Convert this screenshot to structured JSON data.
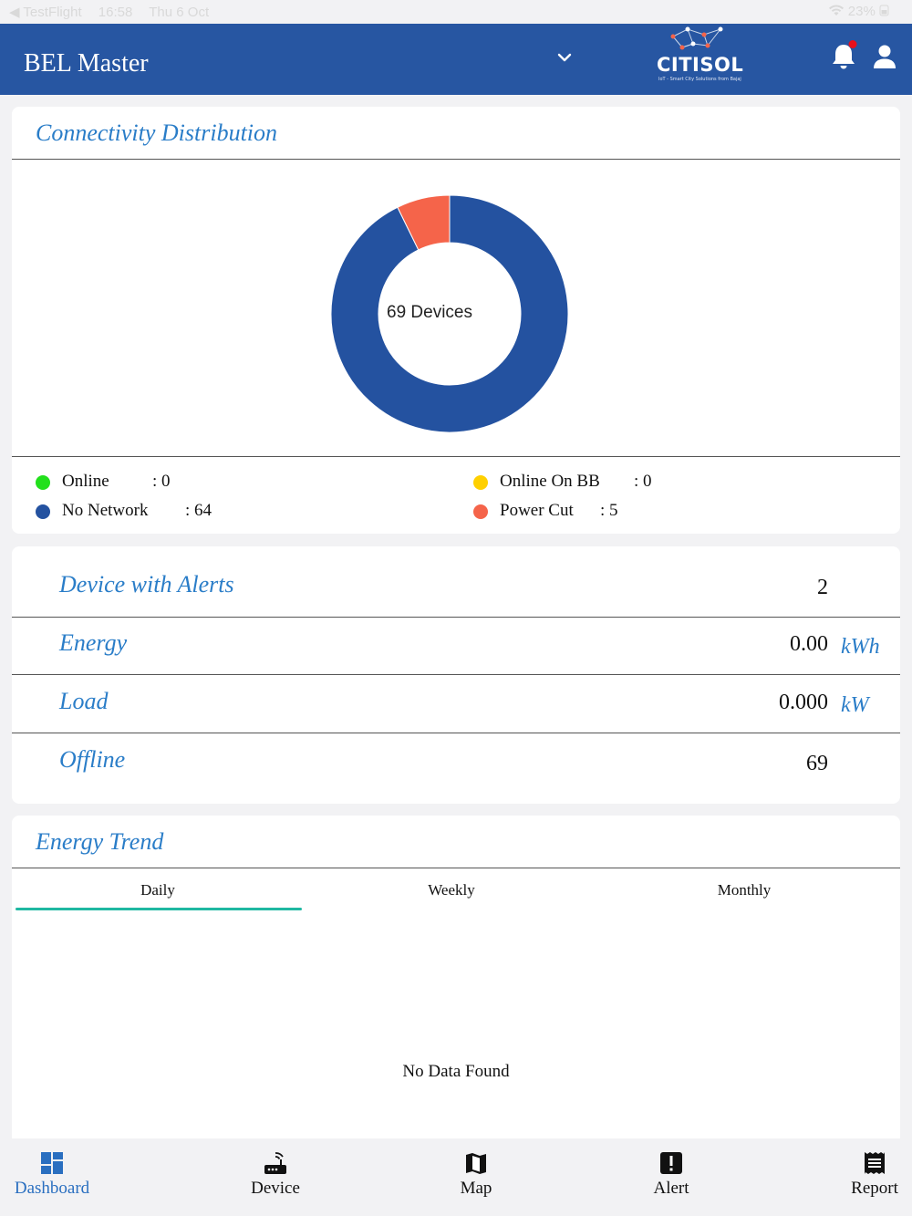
{
  "status_bar": {
    "back_app": "◀ TestFlight",
    "time": "16:58",
    "date": "Thu 6 Oct",
    "battery": "23%"
  },
  "header": {
    "title": "BEL Master",
    "logo_text": "CITISOL",
    "logo_tagline": "IoT - Smart City Solutions from Bajaj"
  },
  "connectivity": {
    "title": "Connectivity Distribution",
    "center_label": "69 Devices",
    "legend": [
      {
        "label": "Online",
        "value": ": 0",
        "color": "#22e01c"
      },
      {
        "label": "Online On BB",
        "value": ": 0",
        "color": "#ffd000"
      },
      {
        "label": "No Network",
        "value": ": 64",
        "color": "#2452a0"
      },
      {
        "label": "Power Cut",
        "value": ": 5",
        "color": "#f5644a"
      }
    ],
    "chart_data": {
      "type": "pie",
      "categories": [
        "Online",
        "Online On BB",
        "No Network",
        "Power Cut"
      ],
      "values": [
        0,
        0,
        64,
        5
      ],
      "colors": [
        "#22e01c",
        "#ffd000",
        "#2452a0",
        "#f5644a"
      ]
    }
  },
  "metrics": {
    "alerts": {
      "label": "Device with Alerts",
      "value": "2"
    },
    "energy": {
      "label": "Energy",
      "value": "0.00",
      "unit": "kWh"
    },
    "load": {
      "label": "Load",
      "value": "0.000",
      "unit": "kW"
    },
    "offline": {
      "label": "Offline",
      "value": "69"
    }
  },
  "trend": {
    "title": "Energy Trend",
    "tabs": [
      "Daily",
      "Weekly",
      "Monthly"
    ],
    "active_tab": "Daily",
    "empty_text": "No Data Found"
  },
  "nav": {
    "items": [
      "Dashboard",
      "Device",
      "Map",
      "Alert",
      "Report"
    ],
    "active": "Dashboard"
  }
}
